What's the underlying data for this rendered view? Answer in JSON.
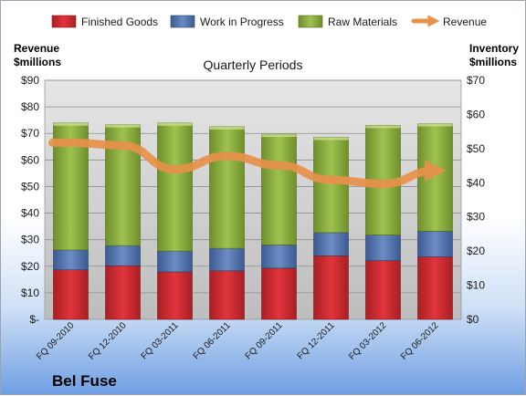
{
  "chart_data": {
    "type": "bar",
    "subtitle": "Quarterly Periods",
    "company": "Bel Fuse",
    "left_axis_title": [
      "Revenue",
      "$millions"
    ],
    "right_axis_title": [
      "Inventory",
      "$millions"
    ],
    "categories": [
      "FQ 09-2010",
      "FQ 12-2010",
      "FQ 03-2011",
      "FQ 06-2011",
      "FQ 09-2011",
      "FQ 12-2011",
      "FQ 03-2012",
      "FQ 06-2012"
    ],
    "left_ylim": [
      0,
      90
    ],
    "left_ticks": [
      0,
      10,
      20,
      30,
      40,
      50,
      60,
      70,
      80,
      90
    ],
    "left_tick_labels": [
      "$-",
      "$10",
      "$20",
      "$30",
      "$40",
      "$50",
      "$60",
      "$70",
      "$80",
      "$90"
    ],
    "right_ylim": [
      0,
      70
    ],
    "right_ticks": [
      0,
      10,
      20,
      30,
      40,
      50,
      60,
      70
    ],
    "right_tick_labels": [
      "$0",
      "$10",
      "$20",
      "$30",
      "$40",
      "$50",
      "$60",
      "$70"
    ],
    "stacked_series_axis": "right",
    "series": [
      {
        "name": "Finished Goods",
        "type": "bar",
        "color": "#c0282f",
        "values": [
          14.5,
          15.7,
          13.9,
          14.2,
          15.0,
          18.6,
          17.2,
          18.3
        ]
      },
      {
        "name": "Work in Progress",
        "type": "bar",
        "color": "#4f6fa8",
        "values": [
          5.8,
          5.9,
          6.1,
          6.6,
          6.8,
          6.8,
          7.5,
          7.5
        ]
      },
      {
        "name": "Raw Materials",
        "type": "bar",
        "color": "#8aad3d",
        "values": [
          37.2,
          35.4,
          37.5,
          35.6,
          32.4,
          27.9,
          32.1,
          31.5
        ]
      },
      {
        "name": "Revenue",
        "type": "line",
        "axis": "left",
        "color": "#e8914a",
        "values": [
          66.5,
          65.5,
          56.5,
          61.5,
          58.0,
          52.5,
          51.0,
          56.0
        ]
      }
    ],
    "grid": true,
    "legend": "top"
  }
}
